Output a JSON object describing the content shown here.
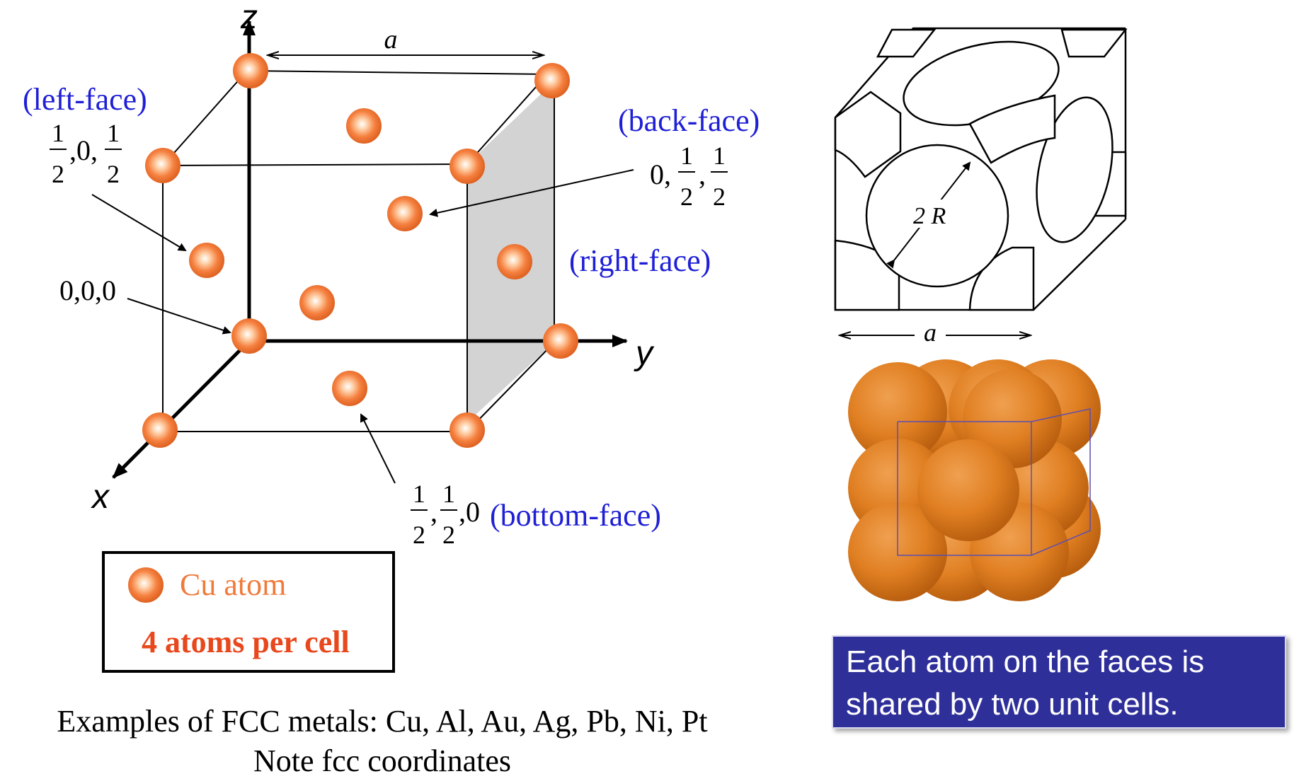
{
  "axes": {
    "x": "x",
    "y": "y",
    "z": "z"
  },
  "dimension_label": "a",
  "faces": {
    "left": "(left-face)",
    "back": "(back-face)",
    "right": "(right-face)",
    "bottom": "(bottom-face)"
  },
  "coordinates": {
    "left_face": {
      "num1": "1",
      "den1": "2",
      "mid": ",0,",
      "num2": "1",
      "den2": "2"
    },
    "back_face": {
      "lead": "0,",
      "num1": "1",
      "den1": "2",
      "sep": ",",
      "num2": "1",
      "den2": "2"
    },
    "origin": "0,0,0",
    "bottom_face": {
      "num1": "1",
      "den1": "2",
      "sep": ",",
      "num2": "1",
      "den2": "2",
      "tail": ",0"
    }
  },
  "legend": {
    "atom_label": "Cu atom",
    "count_label": "4 atoms per cell"
  },
  "sphere_diagram": {
    "radius_label": "2 R",
    "width_label": "a"
  },
  "note": "Each atom on the faces is shared by two unit cells.",
  "examples": {
    "line1": "Examples of FCC metals: Cu, Al, Au, Ag, Pb, Ni, Pt",
    "line2": "Note fcc coordinates"
  },
  "colors": {
    "atom": "#f07a3a",
    "face_label": "#1f1fd6",
    "count_label": "#e8481c",
    "note_bg": "#2e2f99",
    "shaded_face": "#d3d3d3"
  }
}
